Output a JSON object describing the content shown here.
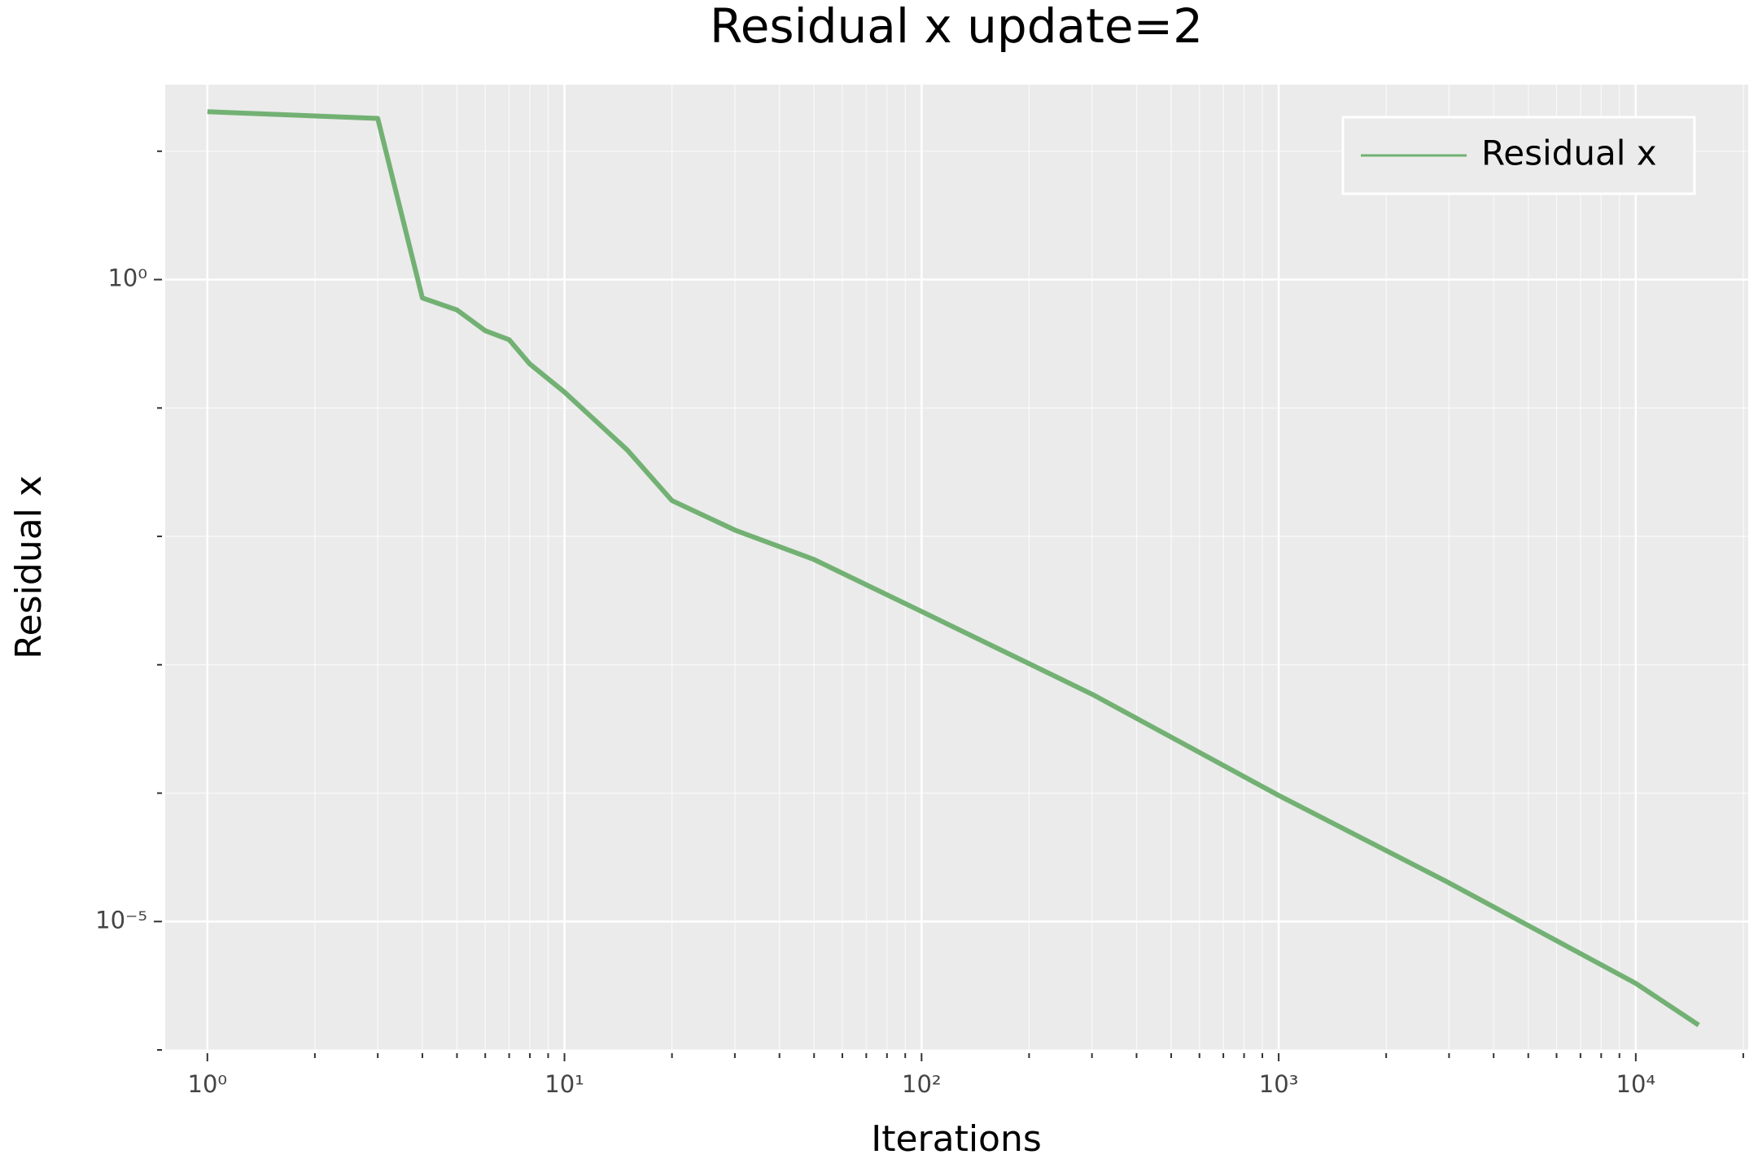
{
  "chart_data": {
    "type": "line",
    "title": "Residual x update=2",
    "xlabel": "Iterations",
    "ylabel": "Residual x",
    "xscale": "log",
    "yscale": "log",
    "grid": true,
    "legend": "upper right",
    "x": [
      1,
      3,
      4,
      5,
      6,
      7,
      8,
      10,
      15,
      20,
      30,
      50,
      100,
      300,
      1000,
      3000,
      10000,
      15000
    ],
    "series": [
      {
        "name": "Residual x",
        "color": "#72b173",
        "values": [
          20.3,
          18,
          0.72,
          0.58,
          0.4,
          0.34,
          0.22,
          0.133,
          0.047,
          0.019,
          0.0112,
          0.0066,
          0.0026,
          0.00059,
          9.6e-05,
          2e-05,
          3.3e-06,
          1.56e-06
        ]
      }
    ],
    "xlim": [
      0.762,
      20650
    ],
    "ylim": [
      1e-06,
      33
    ],
    "xticks": [
      {
        "value": 1,
        "label": "10⁰"
      },
      {
        "value": 10,
        "label": "10¹"
      },
      {
        "value": 100,
        "label": "10²"
      },
      {
        "value": 1000,
        "label": "10³"
      },
      {
        "value": 10000,
        "label": "10⁴"
      }
    ],
    "yticks": [
      {
        "value": 1,
        "label": "10⁰"
      },
      {
        "value": 1e-05,
        "label": "10⁻⁵"
      }
    ],
    "x_minor_ticks": [
      2,
      3,
      4,
      5,
      6,
      7,
      8,
      9,
      20,
      30,
      40,
      50,
      60,
      70,
      80,
      90,
      200,
      300,
      400,
      500,
      600,
      700,
      800,
      900,
      2000,
      3000,
      4000,
      5000,
      6000,
      7000,
      8000,
      9000,
      20000
    ],
    "y_minor_ticks": [
      10,
      0.1,
      0.01,
      0.001,
      0.0001,
      1e-06
    ]
  }
}
